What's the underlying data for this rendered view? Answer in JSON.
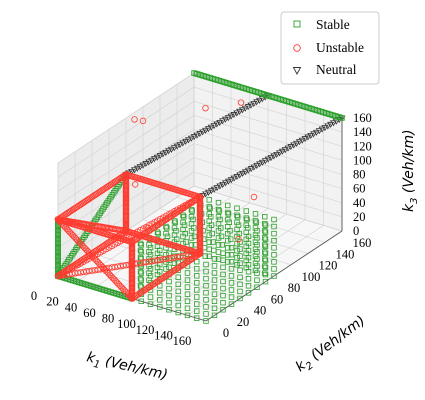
{
  "chart_data": {
    "type": "scatter",
    "projection": "3d",
    "title": "",
    "xlabel": "k1 (Veh/km)",
    "ylabel": "k2 (Veh/km)",
    "zlabel": "k3 (Veh/km)",
    "axis_labels": {
      "x": {
        "var": "k",
        "sub": "1",
        "unit": " (Veh/km)"
      },
      "y": {
        "var": "k",
        "sub": "2",
        "unit": " (Veh/km)"
      },
      "z": {
        "var": "k",
        "sub": "3",
        "unit": " (Veh/km)"
      }
    },
    "xlim": [
      0,
      160
    ],
    "ylim": [
      0,
      160
    ],
    "zlim": [
      0,
      160
    ],
    "xticks": [
      0,
      20,
      40,
      60,
      80,
      100,
      120,
      140,
      160
    ],
    "yticks": [
      0,
      20,
      40,
      60,
      80,
      100,
      120,
      140,
      160
    ],
    "zticks": [
      0,
      20,
      40,
      60,
      80,
      100,
      120,
      140,
      160
    ],
    "grid": true,
    "legend_position": "top-right",
    "legend": [
      {
        "label": "Stable",
        "marker": "square",
        "color": "#2ca02c"
      },
      {
        "label": "Unstable",
        "marker": "circle",
        "color": "#ff3b30"
      },
      {
        "label": "Neutral",
        "marker": "triangle-down",
        "color": "#333333"
      }
    ],
    "segments": [
      {
        "series": "Stable",
        "from": [
          0,
          0,
          0
        ],
        "to": [
          0,
          0,
          80
        ]
      },
      {
        "series": "Stable",
        "from": [
          0,
          0,
          0
        ],
        "to": [
          80,
          0,
          0
        ]
      },
      {
        "series": "Stable",
        "from": [
          0,
          0,
          0
        ],
        "to": [
          0,
          80,
          80
        ]
      },
      {
        "series": "Stable",
        "from": [
          0,
          160,
          160
        ],
        "to": [
          160,
          160,
          160
        ]
      },
      {
        "series": "Unstable",
        "from": [
          0,
          0,
          80
        ],
        "to": [
          80,
          0,
          80
        ]
      },
      {
        "series": "Unstable",
        "from": [
          0,
          0,
          80
        ],
        "to": [
          0,
          80,
          80
        ]
      },
      {
        "series": "Unstable",
        "from": [
          80,
          0,
          80
        ],
        "to": [
          80,
          80,
          80
        ]
      },
      {
        "series": "Unstable",
        "from": [
          0,
          80,
          80
        ],
        "to": [
          80,
          80,
          80
        ]
      },
      {
        "series": "Unstable",
        "from": [
          80,
          0,
          0
        ],
        "to": [
          80,
          0,
          80
        ]
      },
      {
        "series": "Unstable",
        "from": [
          80,
          0,
          0
        ],
        "to": [
          80,
          80,
          0
        ]
      },
      {
        "series": "Unstable",
        "from": [
          80,
          80,
          0
        ],
        "to": [
          80,
          80,
          80
        ]
      },
      {
        "series": "Unstable",
        "from": [
          0,
          80,
          0
        ],
        "to": [
          80,
          80,
          0
        ]
      },
      {
        "series": "Unstable",
        "from": [
          0,
          80,
          0
        ],
        "to": [
          0,
          80,
          80
        ]
      },
      {
        "series": "Unstable",
        "from": [
          0,
          0,
          0
        ],
        "to": [
          0,
          80,
          0
        ]
      },
      {
        "series": "Unstable",
        "from": [
          0,
          0,
          80
        ],
        "to": [
          80,
          0,
          0
        ]
      },
      {
        "series": "Unstable",
        "from": [
          0,
          0,
          0
        ],
        "to": [
          80,
          80,
          0
        ]
      },
      {
        "series": "Unstable",
        "from": [
          0,
          0,
          80
        ],
        "to": [
          0,
          80,
          0
        ]
      },
      {
        "series": "Unstable",
        "from": [
          0,
          0,
          0
        ],
        "to": [
          80,
          80,
          80
        ]
      },
      {
        "series": "Neutral",
        "from": [
          0,
          80,
          80
        ],
        "to": [
          80,
          160,
          160
        ]
      },
      {
        "series": "Neutral",
        "from": [
          80,
          80,
          80
        ],
        "to": [
          160,
          160,
          160
        ]
      }
    ],
    "grid_regions": [
      {
        "series": "Stable",
        "x": [
          80,
          160
        ],
        "y": [
          0,
          80
        ],
        "z": [
          0,
          80
        ],
        "note": "sparse lattice of stable points"
      }
    ],
    "isolated_points": [
      {
        "series": "Unstable",
        "x": 0,
        "y": 90,
        "z": 150
      },
      {
        "series": "Unstable",
        "x": 0,
        "y": 100,
        "z": 140
      },
      {
        "series": "Unstable",
        "x": 10,
        "y": 80,
        "z": 70
      },
      {
        "series": "Unstable",
        "x": 40,
        "y": 130,
        "z": 150
      },
      {
        "series": "Unstable",
        "x": 60,
        "y": 150,
        "z": 150
      },
      {
        "series": "Unstable",
        "x": 60,
        "y": 40,
        "z": 60
      },
      {
        "series": "Unstable",
        "x": 120,
        "y": 100,
        "z": 80
      },
      {
        "series": "Unstable",
        "x": 140,
        "y": 60,
        "z": 60
      }
    ]
  }
}
